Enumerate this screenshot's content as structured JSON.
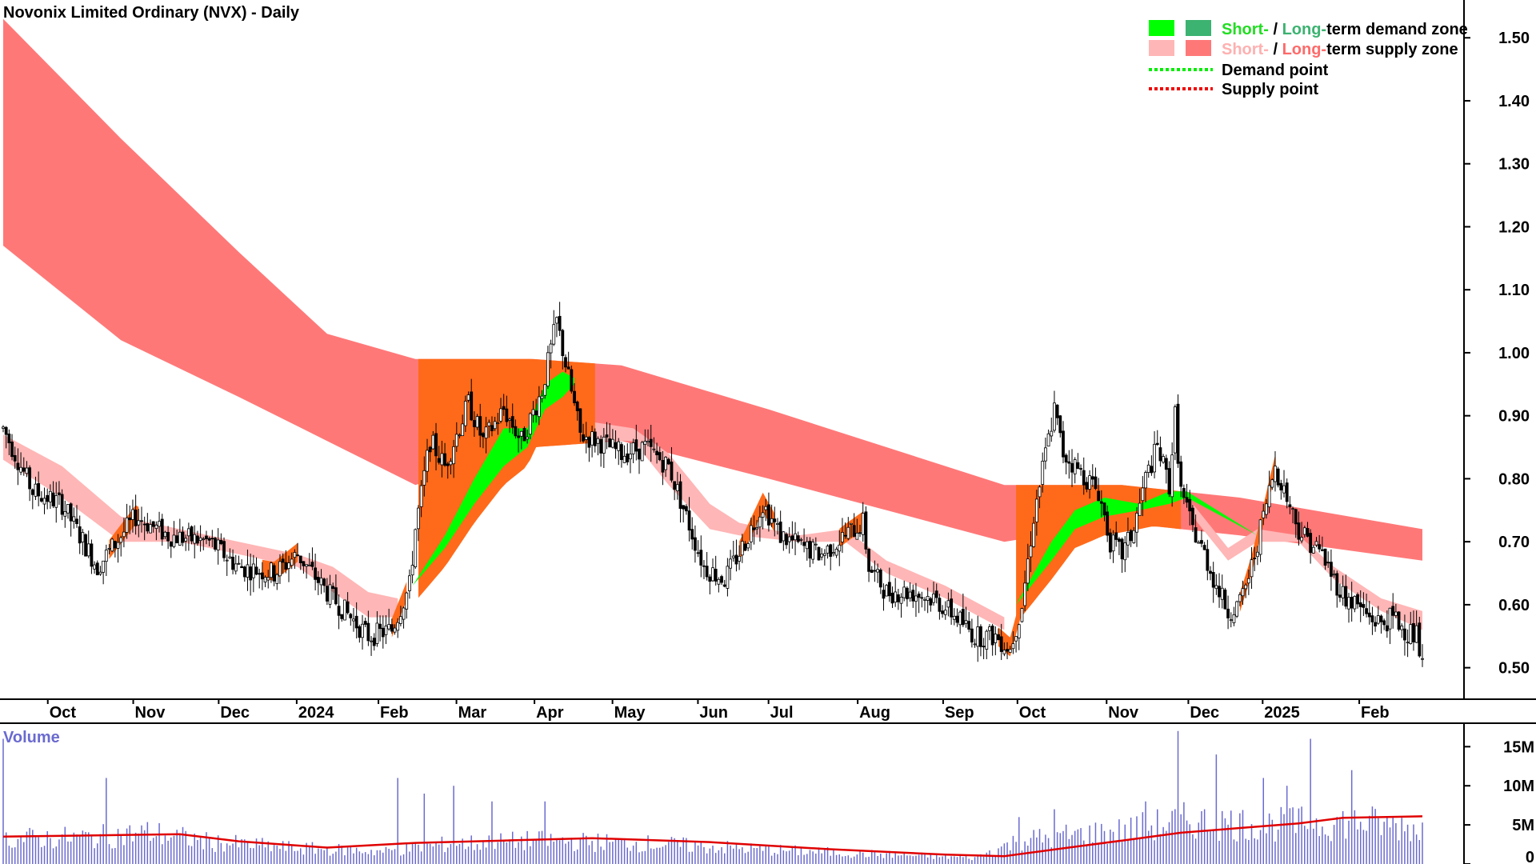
{
  "chart_title": "Novonix Limited Ordinary (NVX) - Daily",
  "legend": {
    "demand_zone": {
      "short": "Short-",
      "sep": " / ",
      "long": "Long-",
      "rest": "term demand zone"
    },
    "supply_zone": {
      "short": "Short-",
      "sep": " / ",
      "long": "Long-",
      "rest": "term supply zone"
    },
    "demand_point": "Demand point",
    "supply_point": "Supply point"
  },
  "colors": {
    "short_demand": "#00ff00",
    "long_demand": "#3cb371",
    "short_supply": "#ffb6b6",
    "long_supply": "#ff7878",
    "overlap": "#ff6a1a",
    "demand_point": "#00ee00",
    "supply_point": "#ee0000",
    "volume_bar": "#6a6ad0",
    "volume_ma": "#e00000",
    "candle": "#000000"
  },
  "volume_label": "Volume",
  "chart_data": [
    {
      "type": "candlestick",
      "title": "Novonix Limited Ordinary (NVX) - Daily",
      "x_labels": [
        "Oct",
        "Nov",
        "Dec",
        "2024",
        "Feb",
        "Mar",
        "Apr",
        "May",
        "Jun",
        "Jul",
        "Aug",
        "Sep",
        "Oct",
        "Nov",
        "Dec",
        "2025",
        "Feb"
      ],
      "y_ticks": [
        "1.50",
        "1.40",
        "1.30",
        "1.20",
        "1.10",
        "1.00",
        "0.90",
        "0.80",
        "0.70",
        "0.60",
        "0.50"
      ],
      "y_range": [
        0.45,
        1.56
      ],
      "price_path": [
        [
          0,
          0.88
        ],
        [
          10,
          0.78
        ],
        [
          20,
          0.76
        ],
        [
          32,
          0.66
        ],
        [
          45,
          0.74
        ],
        [
          56,
          0.71
        ],
        [
          70,
          0.7
        ],
        [
          80,
          0.66
        ],
        [
          92,
          0.65
        ],
        [
          100,
          0.68
        ],
        [
          110,
          0.62
        ],
        [
          118,
          0.58
        ],
        [
          124,
          0.55
        ],
        [
          132,
          0.56
        ],
        [
          138,
          0.63
        ],
        [
          140,
          0.72
        ],
        [
          145,
          0.86
        ],
        [
          150,
          0.82
        ],
        [
          158,
          0.92
        ],
        [
          163,
          0.86
        ],
        [
          170,
          0.91
        ],
        [
          176,
          0.86
        ],
        [
          183,
          0.94
        ],
        [
          188,
          1.05
        ],
        [
          192,
          0.96
        ],
        [
          196,
          0.87
        ],
        [
          202,
          0.86
        ],
        [
          210,
          0.84
        ],
        [
          218,
          0.85
        ],
        [
          226,
          0.82
        ],
        [
          232,
          0.74
        ],
        [
          238,
          0.66
        ],
        [
          245,
          0.64
        ],
        [
          252,
          0.7
        ],
        [
          258,
          0.76
        ],
        [
          264,
          0.71
        ],
        [
          272,
          0.69
        ],
        [
          278,
          0.68
        ],
        [
          286,
          0.71
        ],
        [
          292,
          0.73
        ],
        [
          294,
          0.66
        ],
        [
          300,
          0.62
        ],
        [
          308,
          0.62
        ],
        [
          316,
          0.61
        ],
        [
          324,
          0.58
        ],
        [
          330,
          0.55
        ],
        [
          337,
          0.55
        ],
        [
          342,
          0.53
        ],
        [
          346,
          0.6
        ],
        [
          350,
          0.74
        ],
        [
          354,
          0.84
        ],
        [
          357,
          0.91
        ],
        [
          360,
          0.84
        ],
        [
          364,
          0.82
        ],
        [
          368,
          0.8
        ],
        [
          372,
          0.78
        ],
        [
          376,
          0.7
        ],
        [
          380,
          0.68
        ],
        [
          384,
          0.72
        ],
        [
          388,
          0.8
        ],
        [
          392,
          0.85
        ],
        [
          396,
          0.79
        ],
        [
          398,
          0.9
        ],
        [
          400,
          0.78
        ],
        [
          404,
          0.72
        ],
        [
          408,
          0.68
        ],
        [
          412,
          0.63
        ],
        [
          416,
          0.59
        ],
        [
          420,
          0.6
        ],
        [
          424,
          0.66
        ],
        [
          428,
          0.74
        ],
        [
          432,
          0.82
        ],
        [
          436,
          0.77
        ],
        [
          440,
          0.72
        ],
        [
          444,
          0.7
        ],
        [
          448,
          0.68
        ],
        [
          452,
          0.64
        ],
        [
          456,
          0.61
        ],
        [
          460,
          0.6
        ],
        [
          464,
          0.58
        ],
        [
          468,
          0.57
        ],
        [
          472,
          0.58
        ],
        [
          476,
          0.56
        ],
        [
          480,
          0.55
        ],
        [
          482,
          0.5
        ]
      ],
      "short_term_supply": [
        [
          0,
          0.87,
          0.83
        ],
        [
          20,
          0.82,
          0.77
        ],
        [
          40,
          0.74,
          0.7
        ],
        [
          60,
          0.72,
          0.7
        ],
        [
          80,
          0.7,
          0.68
        ],
        [
          100,
          0.68,
          0.66
        ],
        [
          112,
          0.66,
          0.62
        ],
        [
          124,
          0.62,
          0.58
        ],
        [
          134,
          0.61,
          0.58
        ],
        [
          200,
          0.89,
          0.86
        ],
        [
          214,
          0.88,
          0.86
        ],
        [
          226,
          0.84,
          0.79
        ],
        [
          240,
          0.76,
          0.72
        ],
        [
          250,
          0.73,
          0.71
        ],
        [
          270,
          0.71,
          0.7
        ],
        [
          286,
          0.72,
          0.7
        ],
        [
          300,
          0.67,
          0.65
        ],
        [
          320,
          0.63,
          0.61
        ],
        [
          340,
          0.58,
          0.56
        ],
        [
          404,
          0.76,
          0.74
        ],
        [
          416,
          0.69,
          0.67
        ],
        [
          426,
          0.72,
          0.7
        ],
        [
          440,
          0.71,
          0.7
        ],
        [
          452,
          0.66,
          0.64
        ],
        [
          468,
          0.61,
          0.59
        ],
        [
          482,
          0.59,
          0.56
        ]
      ],
      "long_term_supply": [
        [
          0,
          1.53,
          1.17
        ],
        [
          40,
          1.34,
          1.02
        ],
        [
          80,
          1.16,
          0.93
        ],
        [
          110,
          1.03,
          0.86
        ],
        [
          140,
          0.99,
          0.79
        ],
        [
          180,
          0.99,
          0.85
        ],
        [
          210,
          0.98,
          0.86
        ],
        [
          260,
          0.91,
          0.8
        ],
        [
          300,
          0.85,
          0.75
        ],
        [
          340,
          0.79,
          0.7
        ],
        [
          380,
          0.79,
          0.73
        ],
        [
          420,
          0.77,
          0.71
        ],
        [
          482,
          0.72,
          0.67
        ]
      ],
      "long_term_demand": [
        [
          139,
          0.63,
          0.63
        ],
        [
          150,
          0.71,
          0.69
        ],
        [
          160,
          0.8,
          0.76
        ],
        [
          170,
          0.88,
          0.82
        ],
        [
          178,
          0.88,
          0.85
        ],
        [
          184,
          0.95,
          0.91
        ],
        [
          190,
          0.97,
          0.93
        ],
        [
          194,
          0.96,
          0.95
        ],
        [
          344,
          0.6,
          0.6
        ],
        [
          356,
          0.7,
          0.67
        ],
        [
          364,
          0.75,
          0.72
        ],
        [
          374,
          0.77,
          0.74
        ],
        [
          386,
          0.76,
          0.75
        ],
        [
          396,
          0.78,
          0.76
        ],
        [
          402,
          0.78,
          0.77
        ],
        [
          426,
          0.71,
          0.71
        ],
        [
          434,
          0.71,
          0.71
        ]
      ]
    },
    {
      "type": "bar",
      "title": "Volume",
      "y_ticks": [
        "15M",
        "10M",
        "5M",
        "0"
      ],
      "y_range": [
        0,
        18
      ],
      "volume_profile": [
        [
          0,
          3.2
        ],
        [
          30,
          3.4
        ],
        [
          50,
          4.0
        ],
        [
          70,
          2.8
        ],
        [
          100,
          2.0
        ],
        [
          130,
          1.6
        ],
        [
          150,
          2.5
        ],
        [
          180,
          3.0
        ],
        [
          220,
          2.6
        ],
        [
          260,
          1.8
        ],
        [
          300,
          1.2
        ],
        [
          330,
          0.8
        ],
        [
          345,
          3.0
        ],
        [
          360,
          3.6
        ],
        [
          380,
          4.2
        ],
        [
          400,
          5.5
        ],
        [
          430,
          5.0
        ],
        [
          460,
          5.4
        ],
        [
          482,
          4.6
        ]
      ],
      "volume_spikes": [
        [
          0,
          16
        ],
        [
          35,
          11
        ],
        [
          134,
          11
        ],
        [
          143,
          9
        ],
        [
          153,
          10
        ],
        [
          166,
          8
        ],
        [
          184,
          8
        ],
        [
          345,
          6
        ],
        [
          357,
          7
        ],
        [
          388,
          8
        ],
        [
          399,
          17
        ],
        [
          412,
          14
        ],
        [
          428,
          11
        ],
        [
          436,
          10
        ],
        [
          444,
          16
        ],
        [
          458,
          12
        ],
        [
          470,
          6
        ]
      ],
      "volume_ma": [
        [
          0,
          3.5
        ],
        [
          40,
          3.7
        ],
        [
          60,
          3.8
        ],
        [
          80,
          2.9
        ],
        [
          110,
          2.1
        ],
        [
          140,
          2.7
        ],
        [
          170,
          3.0
        ],
        [
          200,
          3.3
        ],
        [
          240,
          2.8
        ],
        [
          280,
          1.9
        ],
        [
          320,
          1.2
        ],
        [
          340,
          1.0
        ],
        [
          360,
          2.0
        ],
        [
          380,
          3.0
        ],
        [
          400,
          4.0
        ],
        [
          420,
          4.6
        ],
        [
          440,
          5.2
        ],
        [
          455,
          5.9
        ],
        [
          470,
          6.0
        ],
        [
          482,
          6.1
        ]
      ]
    }
  ]
}
